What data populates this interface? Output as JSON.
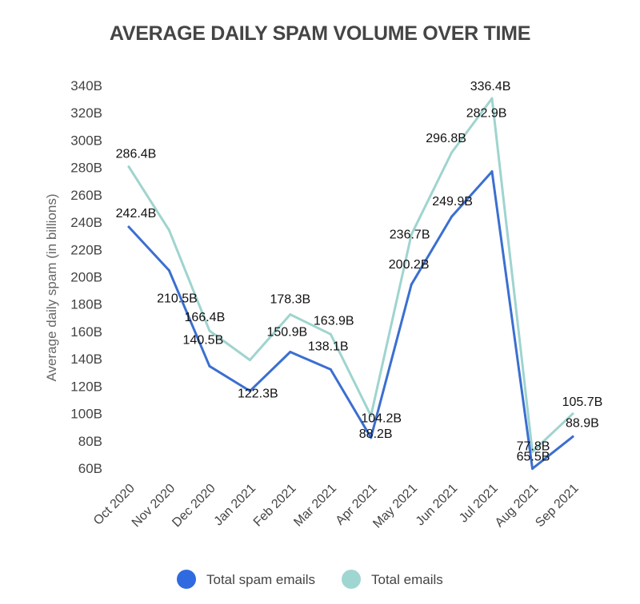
{
  "chart_data": {
    "type": "line",
    "title": "AVERAGE DAILY SPAM VOLUME OVER TIME",
    "xlabel": "",
    "ylabel": "Average daily spam (in billions)",
    "ylim": [
      60,
      340
    ],
    "yticks": [
      {
        "value": 340,
        "label": "340B"
      },
      {
        "value": 320,
        "label": "320B"
      },
      {
        "value": 300,
        "label": "300B"
      },
      {
        "value": 280,
        "label": "280B"
      },
      {
        "value": 260,
        "label": "260B"
      },
      {
        "value": 240,
        "label": "240B"
      },
      {
        "value": 220,
        "label": "220B"
      },
      {
        "value": 200,
        "label": "200B"
      },
      {
        "value": 180,
        "label": "180B"
      },
      {
        "value": 160,
        "label": "160B"
      },
      {
        "value": 140,
        "label": "140B"
      },
      {
        "value": 120,
        "label": "120B"
      },
      {
        "value": 100,
        "label": "100B"
      },
      {
        "value": 80,
        "label": "80B"
      },
      {
        "value": 60,
        "label": "60B"
      }
    ],
    "grid": false,
    "legend_position": "bottom",
    "categories": [
      "Oct 2020",
      "Nov 2020",
      "Dec 2020",
      "Jan 2021",
      "Feb 2021",
      "Mar 2021",
      "Apr 2021",
      "May 2021",
      "Jun 2021",
      "Jul 2021",
      "Aug 2021",
      "Sep 2021"
    ],
    "series": [
      {
        "name": "Total spam emails",
        "color": "#3B6FD0",
        "legend_color": "#2F6AE0",
        "values": [
          242.4,
          210.5,
          140.5,
          122.3,
          150.9,
          138.1,
          88.2,
          200.2,
          249.9,
          282.9,
          65.5,
          88.9
        ],
        "labels": [
          "242.4B",
          "210.5B",
          "140.5B",
          "122.3B",
          "150.9B",
          "138.1B",
          "88.2B",
          "200.2B",
          "249.9B",
          "282.9B",
          "65.5B",
          "88.9B"
        ]
      },
      {
        "name": "Total emails",
        "color": "#9FD4CF",
        "legend_color": "#9FD6D2",
        "values": [
          286.4,
          240.0,
          166.4,
          145.0,
          178.3,
          163.9,
          104.2,
          236.7,
          296.8,
          336.4,
          77.8,
          105.7
        ],
        "labels": [
          "286.4B",
          null,
          "166.4B",
          null,
          "178.3B",
          "163.9B",
          "104.2B",
          "236.7B",
          "296.8B",
          "336.4B",
          "77.8B",
          "105.7B"
        ]
      }
    ]
  }
}
